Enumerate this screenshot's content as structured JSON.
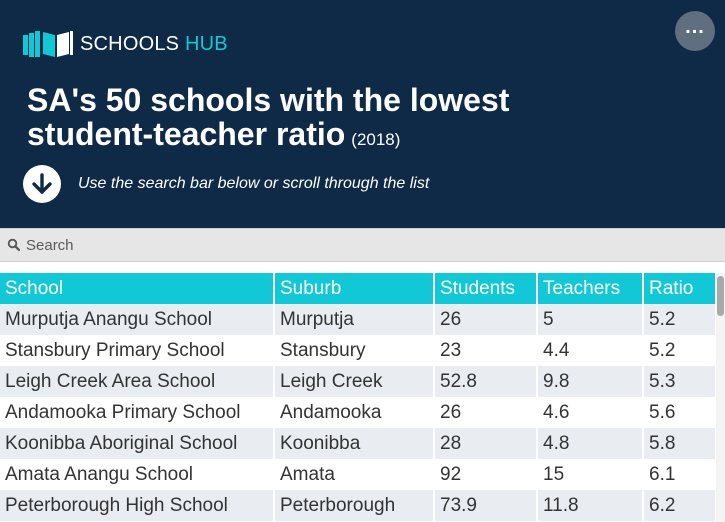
{
  "brand": {
    "name_main": "SCHOOLS ",
    "name_accent": "HUB"
  },
  "header": {
    "title": "SA's 50 schools with the lowest student-teacher ratio",
    "year": "(2018)",
    "hint": "Use the search bar below or scroll through the list"
  },
  "search": {
    "placeholder": "Search",
    "value": ""
  },
  "table": {
    "columns": [
      "School",
      "Suburb",
      "Students",
      "Teachers",
      "Ratio"
    ],
    "rows": [
      [
        "Murputja Anangu School",
        "Murputja",
        "26",
        "5",
        "5.2"
      ],
      [
        "Stansbury Primary School",
        "Stansbury",
        "23",
        "4.4",
        "5.2"
      ],
      [
        "Leigh Creek Area School",
        "Leigh Creek",
        "52.8",
        "9.8",
        "5.3"
      ],
      [
        "Andamooka Primary School",
        "Andamooka",
        "26",
        "4.6",
        "5.6"
      ],
      [
        "Koonibba Aboriginal School",
        "Koonibba",
        "28",
        "4.8",
        "5.8"
      ],
      [
        "Amata Anangu School",
        "Amata",
        "92",
        "15",
        "6.1"
      ],
      [
        "Peterborough High School",
        "Peterborough",
        "73.9",
        "11.8",
        "6.2"
      ]
    ]
  },
  "colors": {
    "header_bg": "#0e2a47",
    "accent": "#13c8d6",
    "row_alt": "#e9edf1"
  },
  "icons": [
    "schools-hub-logo-icon",
    "more-options-icon",
    "arrow-down-icon",
    "search-icon"
  ]
}
